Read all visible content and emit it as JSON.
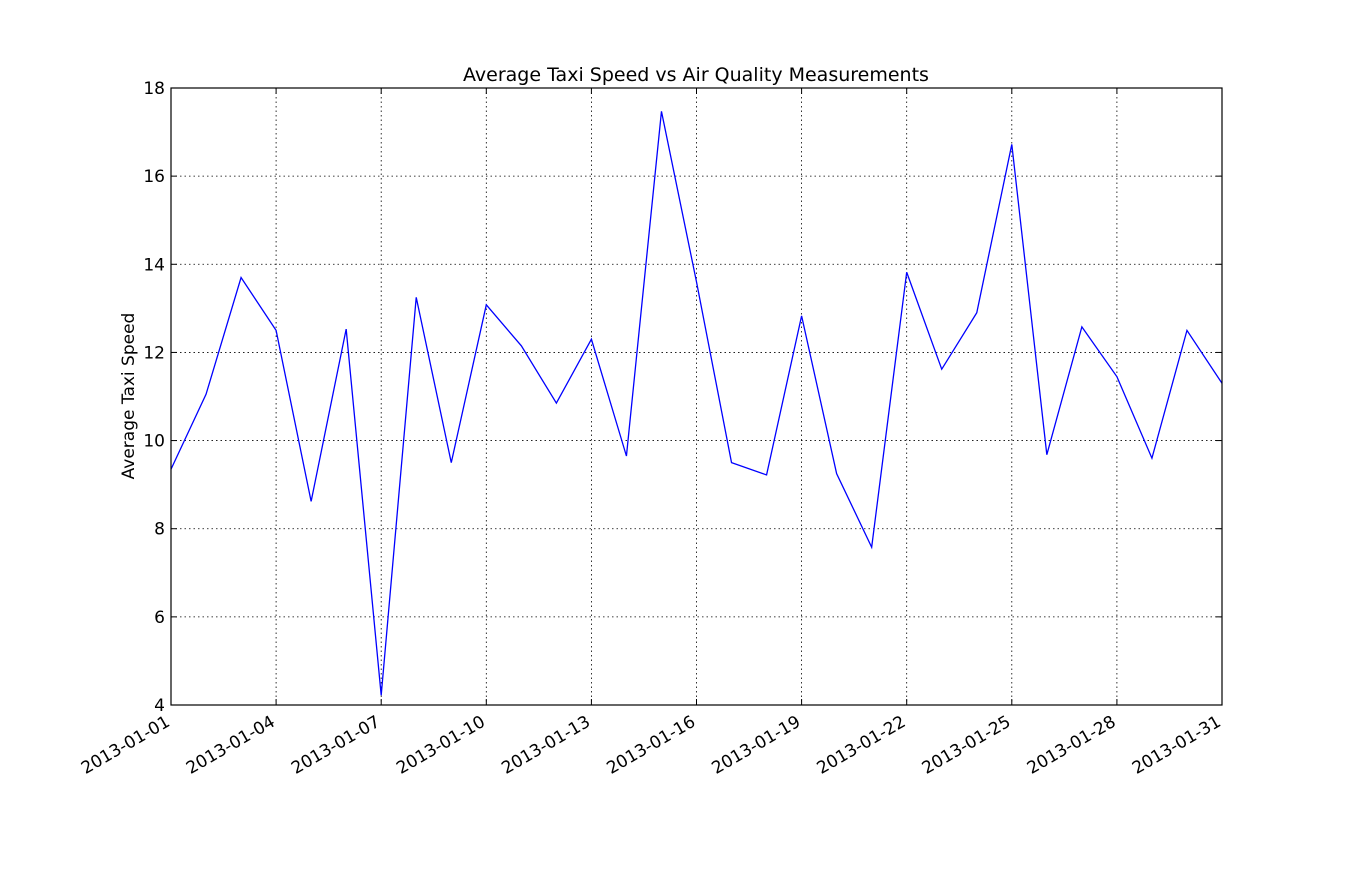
{
  "chart_data": {
    "type": "line",
    "title": "Average Taxi Speed vs Air Quality Measurements",
    "xlabel": "",
    "ylabel": "Average Taxi Speed",
    "ylim": [
      4,
      18
    ],
    "yticks": [
      4,
      6,
      8,
      10,
      12,
      14,
      16,
      18
    ],
    "xlim": [
      "2013-01-01",
      "2013-01-31"
    ],
    "xtick_labels": [
      "2013-01-01",
      "2013-01-04",
      "2013-01-07",
      "2013-01-10",
      "2013-01-13",
      "2013-01-16",
      "2013-01-19",
      "2013-01-22",
      "2013-01-25",
      "2013-01-28",
      "2013-01-31"
    ],
    "grid": true,
    "color": "#0000ff",
    "x": [
      "2013-01-01",
      "2013-01-02",
      "2013-01-03",
      "2013-01-04",
      "2013-01-05",
      "2013-01-06",
      "2013-01-07",
      "2013-01-08",
      "2013-01-09",
      "2013-01-10",
      "2013-01-11",
      "2013-01-12",
      "2013-01-13",
      "2013-01-14",
      "2013-01-15",
      "2013-01-16",
      "2013-01-17",
      "2013-01-18",
      "2013-01-19",
      "2013-01-20",
      "2013-01-21",
      "2013-01-22",
      "2013-01-23",
      "2013-01-24",
      "2013-01-25",
      "2013-01-26",
      "2013-01-27",
      "2013-01-28",
      "2013-01-29",
      "2013-01-30",
      "2013-01-31"
    ],
    "values": [
      9.35,
      11.05,
      13.7,
      12.5,
      8.62,
      12.53,
      4.22,
      13.25,
      9.5,
      13.08,
      12.15,
      10.85,
      12.3,
      9.65,
      17.47,
      13.6,
      9.5,
      9.22,
      12.83,
      9.25,
      7.58,
      13.82,
      11.62,
      12.9,
      16.72,
      9.68,
      12.58,
      11.45,
      9.6,
      12.5,
      11.3
    ]
  }
}
